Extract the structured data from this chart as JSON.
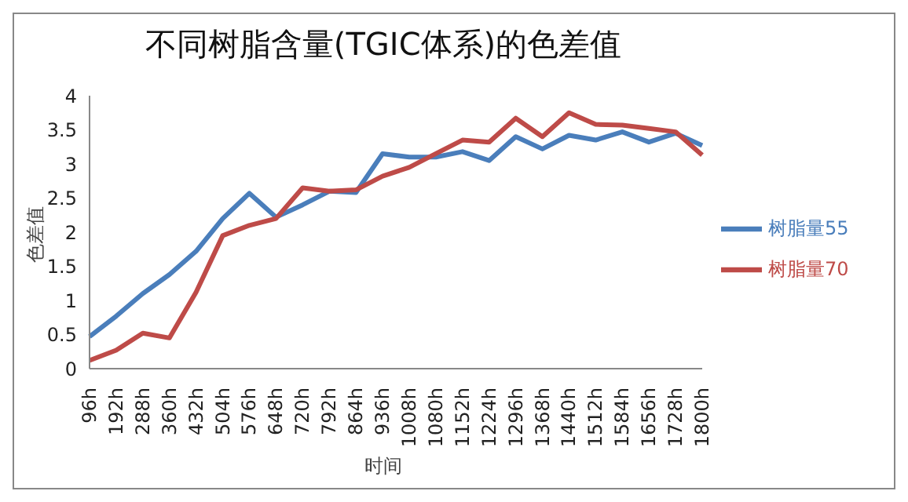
{
  "chart_data": {
    "type": "line",
    "title": "不同树脂含量(TGIC体系)的色差值",
    "xlabel": "时间",
    "ylabel": "色差值",
    "categories": [
      "96h",
      "192h",
      "288h",
      "360h",
      "432h",
      "504h",
      "576h",
      "648h",
      "720h",
      "792h",
      "864h",
      "936h",
      "1008h",
      "1080h",
      "1152h",
      "1224h",
      "1296h",
      "1368h",
      "1440h",
      "1512h",
      "1584h",
      "1656h",
      "1728h",
      "1800h"
    ],
    "series": [
      {
        "name": "树脂量55",
        "color": "#4a7ebb",
        "values": [
          0.47,
          0.77,
          1.1,
          1.38,
          1.72,
          2.2,
          2.57,
          2.22,
          2.4,
          2.6,
          2.58,
          3.15,
          3.1,
          3.1,
          3.18,
          3.05,
          3.4,
          3.22,
          3.42,
          3.35,
          3.47,
          3.32,
          3.45,
          3.27
        ]
      },
      {
        "name": "树脂量70",
        "color": "#be4b48",
        "values": [
          0.12,
          0.27,
          0.52,
          0.45,
          1.12,
          1.95,
          2.1,
          2.2,
          2.65,
          2.6,
          2.62,
          2.82,
          2.95,
          3.15,
          3.35,
          3.32,
          3.67,
          3.4,
          3.75,
          3.58,
          3.57,
          3.52,
          3.47,
          3.13
        ]
      }
    ],
    "ylim": [
      0,
      4
    ],
    "yticks": [
      0,
      0.5,
      1,
      1.5,
      2,
      2.5,
      3,
      3.5,
      4
    ],
    "grid": false,
    "legend": "right",
    "marker": "none",
    "line_style": "solid"
  }
}
